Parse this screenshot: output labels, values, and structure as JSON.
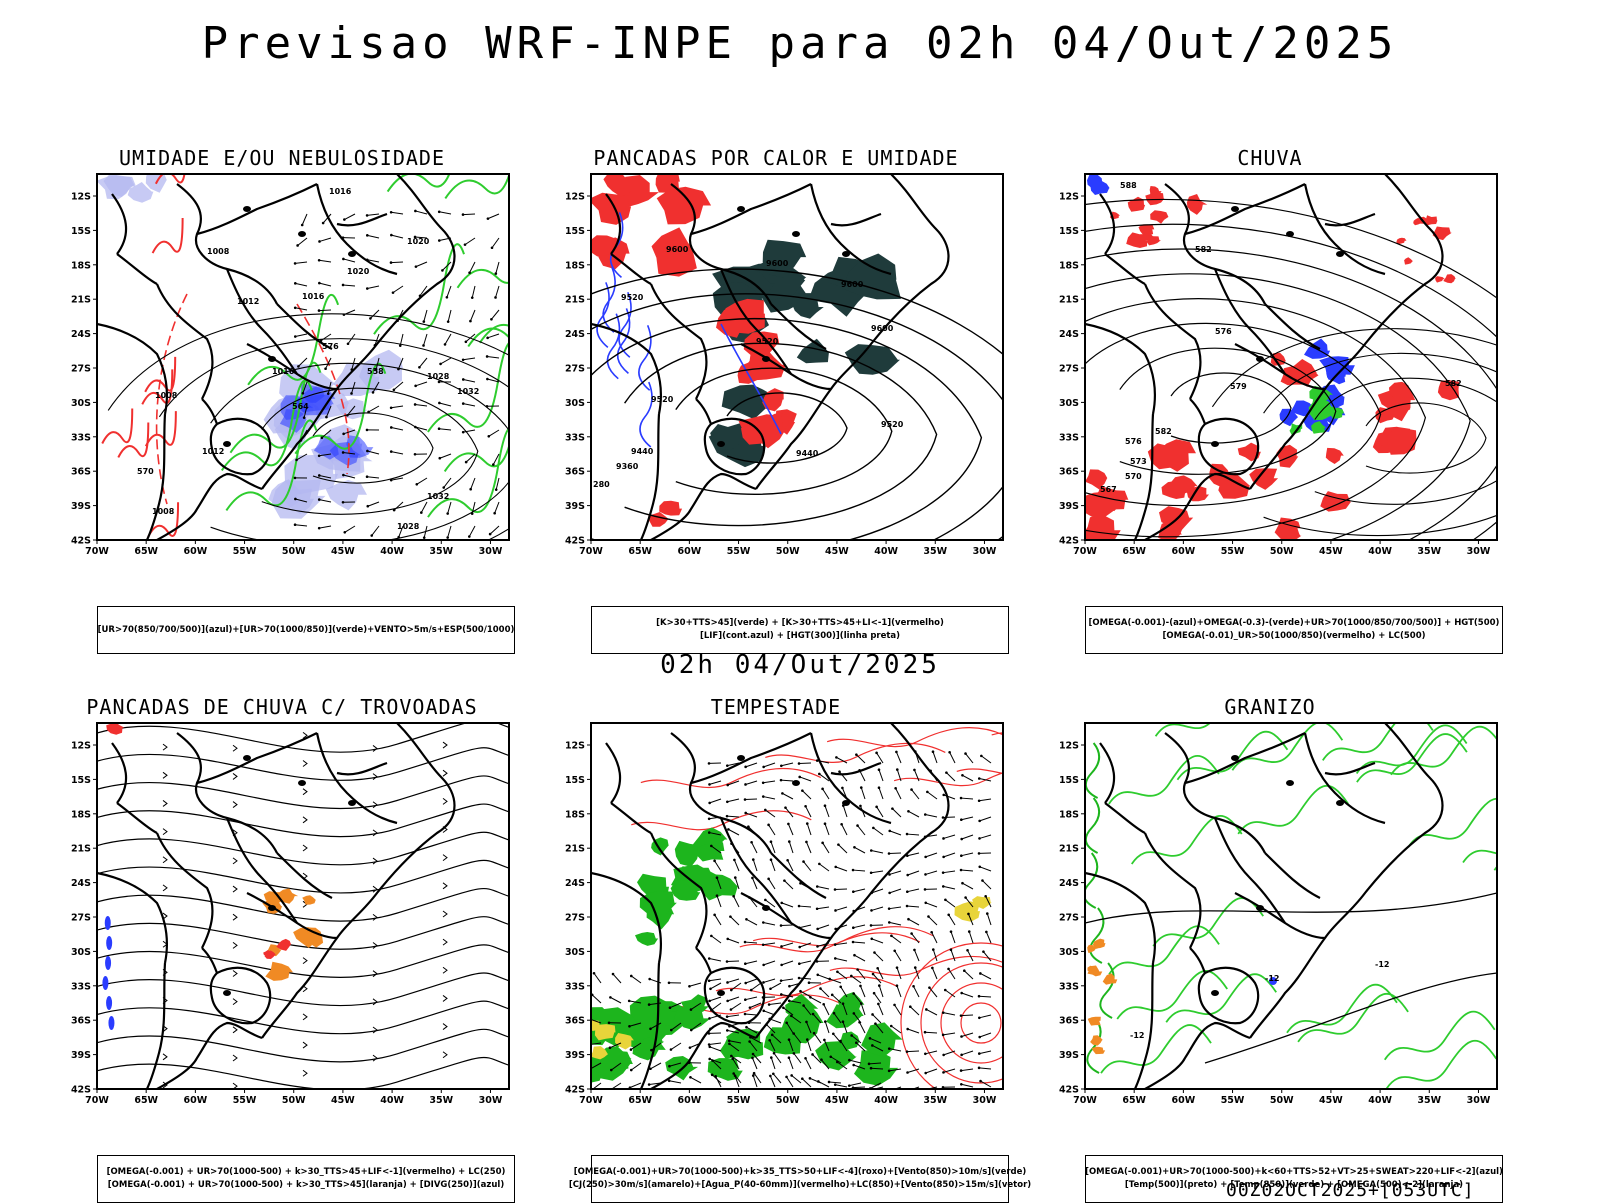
{
  "title": "Previsao WRF-INPE  para 02h 04/Out/2025",
  "mid_date": "02h 04/Out/2025",
  "footer": "00Z02OCT2025+[053UTC]",
  "axes": {
    "lat_labels": [
      "12S",
      "15S",
      "18S",
      "21S",
      "24S",
      "27S",
      "30S",
      "33S",
      "36S",
      "39S",
      "42S"
    ],
    "lon_labels": [
      "70W",
      "65W",
      "60W",
      "55W",
      "50W",
      "45W",
      "40W",
      "35W",
      "30W"
    ]
  },
  "panels": [
    {
      "id": "umidade",
      "title": "UMIDADE E/OU NEBULOSIDADE",
      "legend": [
        "[UR>70(850/700/500)](azul)+[UR>70(1000/850)](verde)+VENTO>5m/s+ESP(500/1000)"
      ],
      "contour_labels": [
        "1016",
        "1008",
        "1020",
        "1012",
        "1016",
        "1020",
        "1016",
        "1028",
        "1032",
        "1012",
        "1008",
        "1032",
        "1028",
        "1008",
        "576",
        "564",
        "558",
        "570"
      ]
    },
    {
      "id": "pancadas-calor",
      "title": "PANCADAS POR CALOR E UMIDADE",
      "legend": [
        "[K>30+TTS>45](verde)  +  [K>30+TTS>45+LI<-1](vermelho)",
        "[LIF](cont.azul)  +  [HGT(300)](linha preta)"
      ],
      "contour_labels": [
        "9600",
        "9600",
        "9600",
        "9520",
        "9520",
        "9600",
        "9520",
        "9520",
        "9440",
        "9440",
        "9360",
        "280"
      ]
    },
    {
      "id": "chuva",
      "title": "CHUVA",
      "legend": [
        "[OMEGA(-0.001)-(azul)+OMEGA(-0.3)-(verde)+UR>70(1000/850/700/500)]  +  HGT(500)",
        "[OMEGA(-0.01)_UR>50(1000/850)(vermelho)  +  LC(500)"
      ],
      "contour_labels": [
        "588",
        "582",
        "576",
        "579",
        "582",
        "576",
        "573",
        "570",
        "567",
        "582"
      ]
    },
    {
      "id": "pancadas-trovoadas",
      "title": "PANCADAS DE CHUVA C/ TROVOADAS",
      "legend": [
        "[OMEGA(-0.001)  +  UR>70(1000-500)  +  k>30_TTS>45+LIF<-1](vermelho)  +  LC(250)",
        "[OMEGA(-0.001)  +  UR>70(1000-500)  +  k>30_TTS>45](laranja)  +  [DIVG(250)](azul)"
      ],
      "contour_labels": []
    },
    {
      "id": "tempestade",
      "title": "TEMPESTADE",
      "legend": [
        "[OMEGA(-0.001)+UR>70(1000-500)+k>35_TTS>50+LIF<-4](roxo)+[Vento(850)>10m/s](verde)",
        "[CJ(250)>30m/s](amarelo)+[Agua_P(40-60mm)](vermelho)+LC(850)+[Vento(850)>15m/s](vetor)"
      ],
      "contour_labels": []
    },
    {
      "id": "granizo",
      "title": "GRANIZO",
      "legend": [
        "[OMEGA(-0.001)+UR>70(1000-500)+k<60+TTS>52+VT>25+SWEAT>220+LIF<-2](azul)",
        "[Temp(500)](preto)  +  [Temp(850)](verde)  +  [OMEGA(500)<-2](laranja)"
      ],
      "contour_labels": [
        "-12",
        "-12",
        "-12"
      ]
    }
  ],
  "colors": {
    "black": "#000000",
    "red": "#f0302f",
    "dark_red": "#e53935",
    "green": "#2ecc2e",
    "bright_green": "#1db51d",
    "blue": "#2a3cff",
    "light_blue": "#b4b8f0",
    "dark_teal": "#1f3b3b",
    "orange": "#f08a24",
    "yellow": "#e8d43a"
  }
}
